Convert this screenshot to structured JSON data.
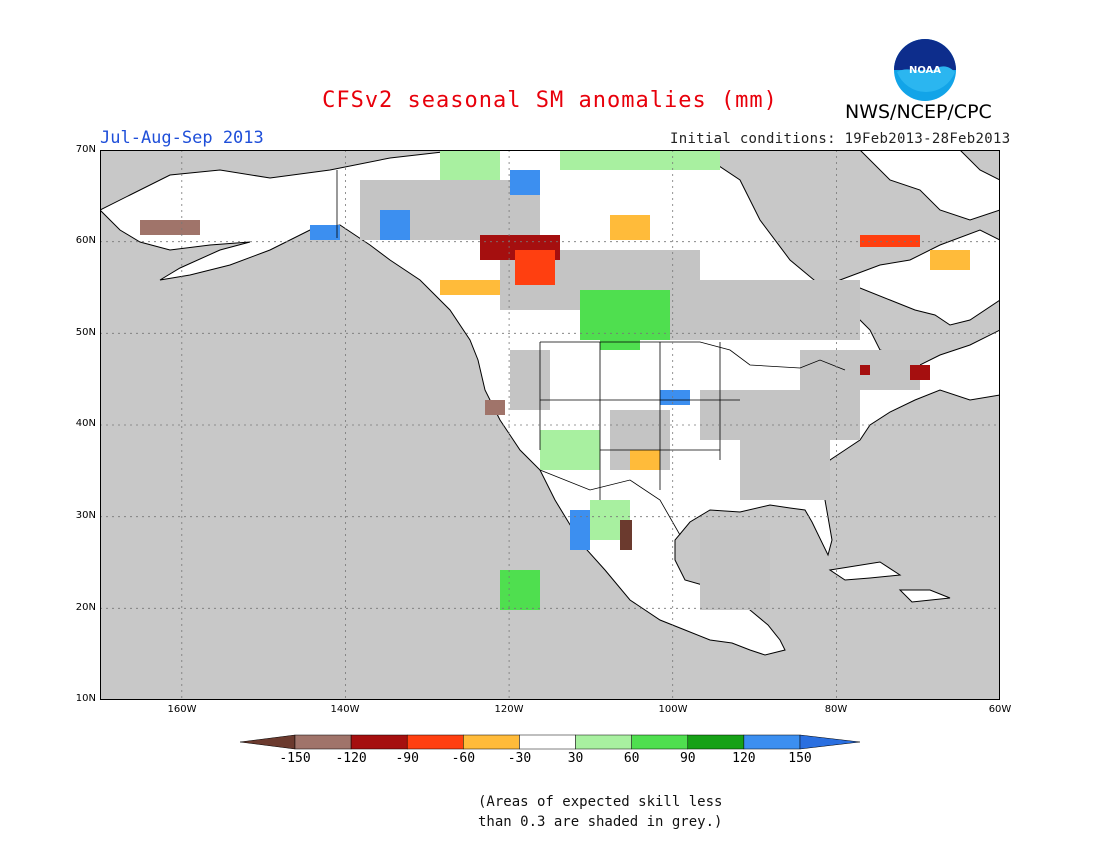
{
  "title": "CFSv2 seasonal SM anomalies (mm)",
  "period": "Jul-Aug-Sep 2013",
  "initial_conditions": "Initial conditions: 19Feb2013-28Feb2013",
  "agency": "NWS/NCEP/CPC",
  "logo_text": "NOAA",
  "lat_labels": [
    "70N",
    "60N",
    "50N",
    "40N",
    "30N",
    "20N",
    "10N"
  ],
  "lon_labels": [
    "160W",
    "140W",
    "120W",
    "100W",
    "80W",
    "60W"
  ],
  "colorbar": {
    "labels": [
      "-150",
      "-120",
      "-90",
      "-60",
      "-30",
      "30",
      "60",
      "90",
      "120",
      "150"
    ],
    "colors": [
      "#6b3a2e",
      "#a0746a",
      "#a50f0f",
      "#ff3f10",
      "#ffbb3a",
      "#ffffff",
      "#a8f0a0",
      "#4fdf4f",
      "#16a116",
      "#3c8ff0",
      "#2a6fe0"
    ]
  },
  "note_line1": "(Areas of expected skill less",
  "note_line2": "than 0.3 are shaded in grey.)",
  "colors": {
    "ocean": "#c8c8c8",
    "land": "#ffffff",
    "grey_skill": "#c4c4c4",
    "title": "#e8000b",
    "period": "#1f4fd9"
  }
}
